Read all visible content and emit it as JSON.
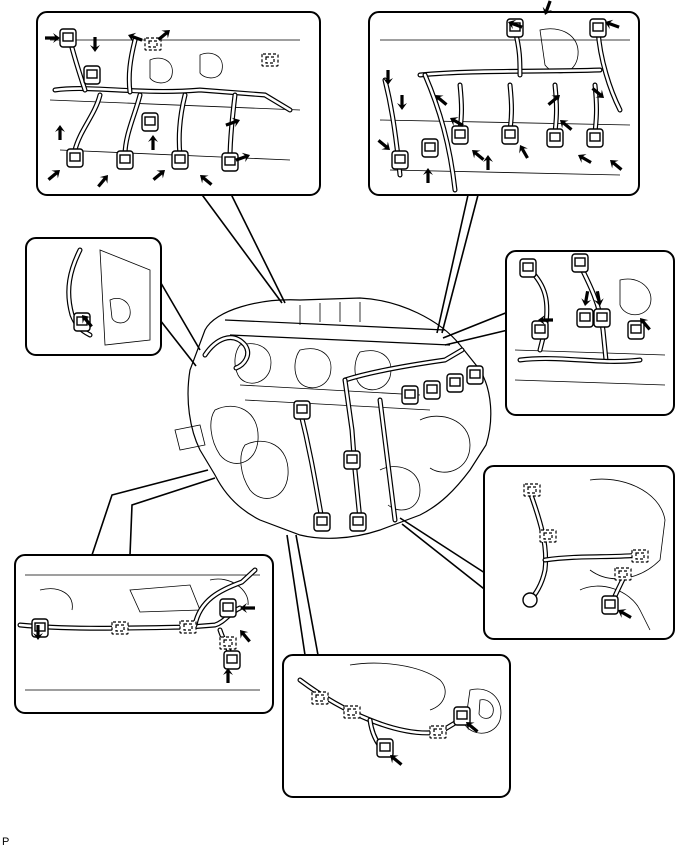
{
  "figure": {
    "code": "P"
  }
}
